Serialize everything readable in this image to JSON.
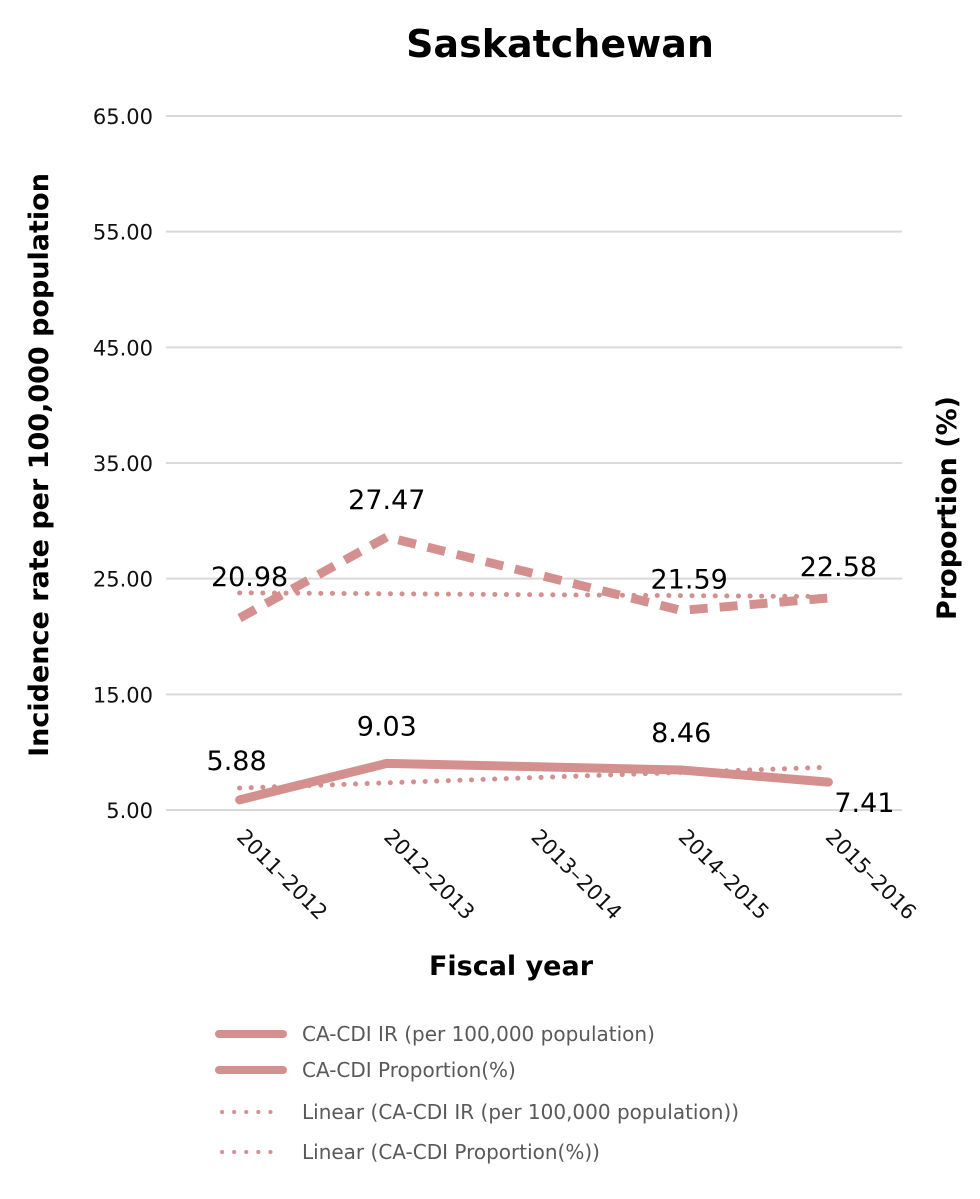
{
  "chart_data": {
    "type": "line",
    "title": "Saskatchewan",
    "xlabel": "Fiscal year",
    "ylabel": "Incidence rate per 100,000 population",
    "y2label": "Proportion (%)",
    "categories": [
      "2011–2012",
      "2012–2013",
      "2013–2014",
      "2014–2015",
      "2015–2016"
    ],
    "ylim": [
      5,
      65
    ],
    "yticks": [
      "5.00",
      "15.00",
      "25.00",
      "35.00",
      "45.00",
      "55.00",
      "65.00"
    ],
    "y2lim": [
      5.6,
      61.2
    ],
    "grid": true,
    "legend_position": "bottom",
    "color": "#d4908f",
    "series": [
      {
        "name": "CA-CDI IR (per 100,000 population)",
        "axis": "left",
        "style": "solid",
        "values": [
          5.88,
          9.03,
          null,
          8.46,
          7.41
        ],
        "labels": [
          "5.88",
          "9.03",
          "",
          "8.46",
          "7.41"
        ]
      },
      {
        "name": "CA-CDI Proportion(%)",
        "axis": "right",
        "style": "dashed",
        "values": [
          20.98,
          27.47,
          null,
          21.59,
          22.58
        ],
        "labels": [
          "20.98",
          "27.47",
          "",
          "21.59",
          "22.58"
        ]
      },
      {
        "name": "Linear (CA-CDI IR (per 100,000 population))",
        "axis": "left",
        "style": "dotted",
        "trend_of": 0,
        "values": [
          6.9,
          7.4,
          null,
          8.3,
          8.7
        ]
      },
      {
        "name": "Linear (CA-CDI Proportion(%))",
        "axis": "right",
        "style": "dotted",
        "trend_of": 1,
        "values": [
          23.0,
          22.9,
          null,
          22.8,
          22.7
        ]
      }
    ],
    "legend": [
      {
        "label": "CA-CDI IR (per 100,000 population)",
        "style": "solid"
      },
      {
        "label": "CA-CDI Proportion(%)",
        "style": "solid"
      },
      {
        "label": "Linear (CA-CDI IR (per 100,000 population))",
        "style": "dotted"
      },
      {
        "label": "Linear (CA-CDI Proportion(%))",
        "style": "dotted"
      }
    ]
  }
}
